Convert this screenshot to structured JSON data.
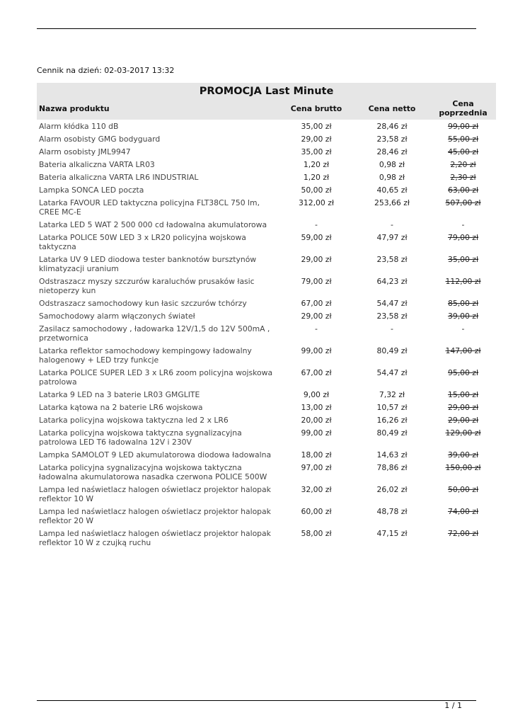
{
  "header": {
    "date_line": "Cennik na dzień: 02-03-2017 13:32"
  },
  "table": {
    "title": "PROMOCJA Last Minute",
    "columns": [
      "Nazwa produktu",
      "Cena brutto",
      "Cena netto",
      "Cena poprzednia"
    ],
    "rows": [
      [
        "Alarm kłódka 110 dB",
        "35,00 zł",
        "28,46 zł",
        "99,00 zł"
      ],
      [
        "Alarm osobisty GMG bodyguard",
        "29,00 zł",
        "23,58 zł",
        "55,00 zł"
      ],
      [
        "Alarm osobisty JML9947",
        "35,00 zł",
        "28,46 zł",
        "45,00 zł"
      ],
      [
        "Bateria alkaliczna VARTA LR03",
        "1,20 zł",
        "0,98 zł",
        "2,20 zł"
      ],
      [
        "Bateria alkaliczna VARTA LR6 INDUSTRIAL",
        "1,20 zł",
        "0,98 zł",
        "2,30 zł"
      ],
      [
        "Lampka SONCA LED poczta",
        "50,00 zł",
        "40,65 zł",
        "63,00 zł"
      ],
      [
        "Latarka FAVOUR LED taktyczna policyjna FLT38CL 750 lm, CREE MC-E",
        "312,00 zł",
        "253,66 zł",
        "507,00 zł"
      ],
      [
        "Latarka LED 5 WAT 2 500 000 cd ładowalna akumulatorowa",
        "-",
        "-",
        "-"
      ],
      [
        "Latarka POLICE 50W LED 3 x LR20 policyjna wojskowa taktyczna",
        "59,00 zł",
        "47,97 zł",
        "79,00 zł"
      ],
      [
        "Latarka UV 9 LED diodowa tester banknotów bursztynów klimatyzacji uranium",
        "29,00 zł",
        "23,58 zł",
        "35,00 zł"
      ],
      [
        "Odstraszacz myszy szczurów karaluchów prusaków łasic nietoperzy kun",
        "79,00 zł",
        "64,23 zł",
        "112,00 zł"
      ],
      [
        "Odstraszacz samochodowy kun łasic szczurów tchórzy",
        "67,00 zł",
        "54,47 zł",
        "85,00 zł"
      ],
      [
        "Samochodowy alarm włączonych świateł",
        "29,00 zł",
        "23,58 zł",
        "39,00 zł"
      ],
      [
        "Zasilacz samochodowy , ładowarka 12V/1,5 do 12V 500mA , przetwornica",
        "-",
        "-",
        "-"
      ],
      [
        "Latarka reflektor samochodowy kempingowy ładowalny halogenowy + LED trzy funkcje",
        "99,00 zł",
        "80,49 zł",
        "147,00 zł"
      ],
      [
        "Latarka POLICE SUPER LED 3 x LR6 zoom policyjna wojskowa patrolowa",
        "67,00 zł",
        "54,47 zł",
        "95,00 zł"
      ],
      [
        "Latarka 9 LED na 3 baterie LR03 GMGLITE",
        "9,00 zł",
        "7,32 zł",
        "15,00 zł"
      ],
      [
        "Latarka kątowa na 2 baterie LR6 wojskowa",
        "13,00 zł",
        "10,57 zł",
        "29,00 zł"
      ],
      [
        "Latarka policyjna wojskowa taktyczna led 2 x LR6",
        "20,00 zł",
        "16,26 zł",
        "29,00 zł"
      ],
      [
        "Latarka policyjna wojskowa taktyczna sygnalizacyjna patrolowa LED T6 ładowalna 12V i 230V",
        "99,00 zł",
        "80,49 zł",
        "129,00 zł"
      ],
      [
        "Lampka SAMOLOT 9 LED akumulatorowa diodowa ładowalna",
        "18,00 zł",
        "14,63 zł",
        "39,00 zł"
      ],
      [
        "Latarka policyjna sygnalizacyjna wojskowa taktyczna ładowalna akumulatorowa nasadka czerwona POLICE 500W",
        "97,00 zł",
        "78,86 zł",
        "150,00 zł"
      ],
      [
        "Lampa led naświetlacz halogen oświetlacz projektor halopak reflektor 10 W",
        "32,00 zł",
        "26,02 zł",
        "50,00 zł"
      ],
      [
        "Lampa led naświetlacz halogen oświetlacz projektor halopak reflektor 20 W",
        "60,00 zł",
        "48,78 zł",
        "74,00 zł"
      ],
      [
        "Lampa led naświetlacz halogen oświetlacz projektor halopak reflektor 10 W z czujką ruchu",
        "58,00 zł",
        "47,15 zł",
        "72,00 zł"
      ]
    ]
  },
  "footer": {
    "page": "1 / 1"
  }
}
